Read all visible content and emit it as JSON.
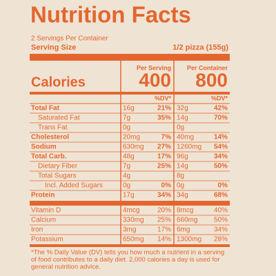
{
  "title": "Nutrition Facts",
  "servings": "2 Servings Per Container",
  "serving_size": {
    "label": "Serving Size",
    "value": "1/2 pizza (155g)"
  },
  "columns": {
    "serving": "Per Serving",
    "container": "Per Container"
  },
  "calories": {
    "label": "Calories",
    "serving": "400",
    "container": "800"
  },
  "dv_header": "%DV*",
  "nutrients": [
    {
      "name": "Total Fat",
      "style": "bold",
      "serving": {
        "amount": "16g",
        "dv": "21%"
      },
      "container": {
        "amount": "32g",
        "dv": "42%"
      }
    },
    {
      "name": "Saturated Fat",
      "style": "indent",
      "serving": {
        "amount": "7g",
        "dv": "35%"
      },
      "container": {
        "amount": "14g",
        "dv": "70%"
      }
    },
    {
      "name": "Trans Fat",
      "style": "indent",
      "serving": {
        "amount": "0g"
      },
      "container": {
        "amount": "0g"
      }
    },
    {
      "name": "Cholesterol",
      "style": "bold",
      "serving": {
        "amount": "20mg",
        "dv": "7%"
      },
      "container": {
        "amount": "40mg",
        "dv": "14%"
      }
    },
    {
      "name": "Sodium",
      "style": "bold",
      "serving": {
        "amount": "630mg",
        "dv": "27%"
      },
      "container": {
        "amount": "1260mg",
        "dv": "54%"
      }
    },
    {
      "name": "Total Carb.",
      "style": "bold",
      "serving": {
        "amount": "48g",
        "dv": "17%"
      },
      "container": {
        "amount": "96g",
        "dv": "34%"
      }
    },
    {
      "name": "Dietary Fiber",
      "style": "indent",
      "serving": {
        "amount": "7g",
        "dv": "25%"
      },
      "container": {
        "amount": "14g",
        "dv": "50%"
      }
    },
    {
      "name": "Total Sugars",
      "style": "indent",
      "serving": {
        "amount": "4g"
      },
      "container": {
        "amount": "8g"
      }
    },
    {
      "name": "Incl. Added Sugars",
      "style": "indent2",
      "serving": {
        "amount": "0g",
        "dv": "0%"
      },
      "container": {
        "amount": "0g",
        "dv": "0%"
      }
    },
    {
      "name": "Protein",
      "style": "bold",
      "serving": {
        "amount": "17g",
        "dv": "34%"
      },
      "container": {
        "amount": "34g",
        "dv": "68%"
      }
    }
  ],
  "vitamins": [
    {
      "name": "Vitamin D",
      "serving": {
        "amount": "4mcg",
        "dv": "20%"
      },
      "container": {
        "amount": "8mcg",
        "dv": "40%"
      }
    },
    {
      "name": "Calcium",
      "serving": {
        "amount": "330mg",
        "dv": "25%"
      },
      "container": {
        "amount": "660mg",
        "dv": "50%"
      }
    },
    {
      "name": "Iron",
      "serving": {
        "amount": "3mg",
        "dv": "17%"
      },
      "container": {
        "amount": "6mg",
        "dv": "34%"
      }
    },
    {
      "name": "Potassium",
      "serving": {
        "amount": "650mg",
        "dv": "14%"
      },
      "container": {
        "amount": "1300mg",
        "dv": "28%"
      }
    }
  ],
  "footnote": [
    "*The % Daily Value (DV) tells you how much a nutrient in a serving",
    "of food contributes to a daily diet. 2,000 calories a day is used for",
    "general nutrition advice."
  ]
}
